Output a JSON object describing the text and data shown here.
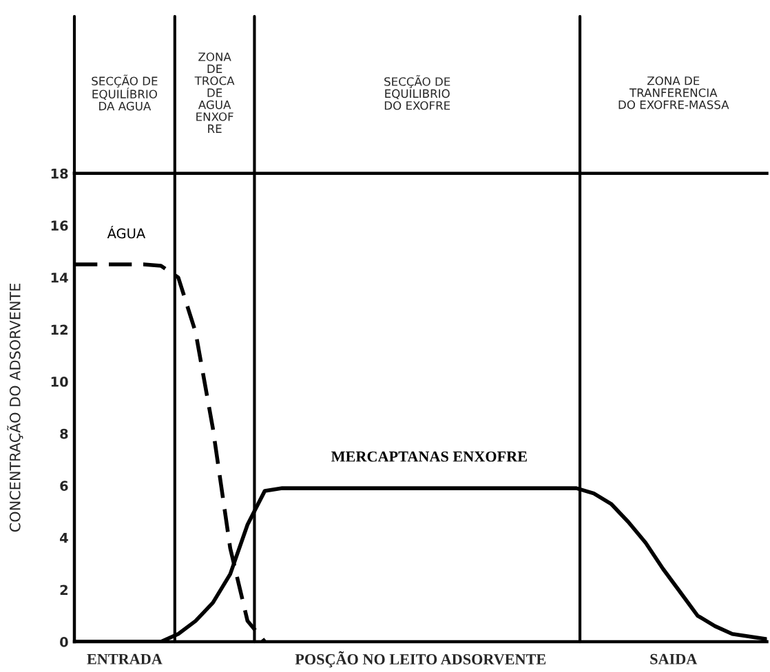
{
  "chart_data": {
    "type": "line",
    "xlabel": "POSÇÃO NO LEITO ADSORVENTE",
    "ylabel": "CONCENTRAÇÃO DO ADSORVENTE",
    "categories": [
      null,
      null,
      null,
      null,
      null,
      null,
      null,
      null,
      null,
      null,
      null,
      null,
      null,
      null,
      null,
      null,
      null,
      null,
      null,
      null,
      null,
      null,
      null,
      null,
      null,
      null,
      null,
      null,
      null,
      null,
      null,
      null,
      null,
      null,
      null,
      null,
      null,
      null,
      null,
      null,
      null
    ],
    "ylim": [
      0,
      18
    ],
    "yticks": [
      0,
      2,
      4,
      6,
      8,
      10,
      12,
      14,
      16,
      18
    ],
    "grid": false,
    "legend": false,
    "marker": "none",
    "annotations": [
      "SECÇÃO DE\nEQUILÍBRIO\nDA AGUA",
      "ZONA\nDE\nTROCA\nDE\nAGUA\nENXOF\nRE",
      "SECÇÃO DE\nEQUILIBRIO\nDO EXOFRE",
      "ZONA DE\nTRANFERENCIA\nDO EXOFRE-MASSA",
      "ENTRADA",
      "SAIDA"
    ],
    "series": [
      {
        "name": "ÁGUA",
        "color": "#000000",
        "line_style": "dashed",
        "values": [
          14.5,
          14.5,
          14.5,
          14.5,
          14.5,
          14.45,
          14.0,
          11.9,
          8.2,
          3.6,
          0.8,
          0,
          null,
          null,
          null,
          null,
          null,
          null,
          null,
          null,
          null,
          null,
          null,
          null,
          null,
          null,
          null,
          null,
          null,
          null,
          null,
          null,
          null,
          null,
          null,
          null,
          null,
          null,
          null,
          null,
          null
        ]
      },
      {
        "name": "MERCAPTANAS ENXOFRE",
        "color": "#000000",
        "line_style": "solid",
        "values": [
          0,
          0,
          0,
          0,
          0,
          0,
          0.3,
          0.8,
          1.5,
          2.6,
          4.5,
          5.8,
          5.9,
          5.9,
          5.9,
          5.9,
          5.9,
          5.9,
          5.9,
          5.9,
          5.9,
          5.9,
          5.9,
          5.9,
          5.9,
          5.9,
          5.9,
          5.9,
          5.9,
          5.9,
          5.7,
          5.3,
          4.6,
          3.8,
          2.8,
          1.9,
          1.0,
          0.6,
          0.3,
          0.2,
          0.1
        ]
      }
    ]
  }
}
